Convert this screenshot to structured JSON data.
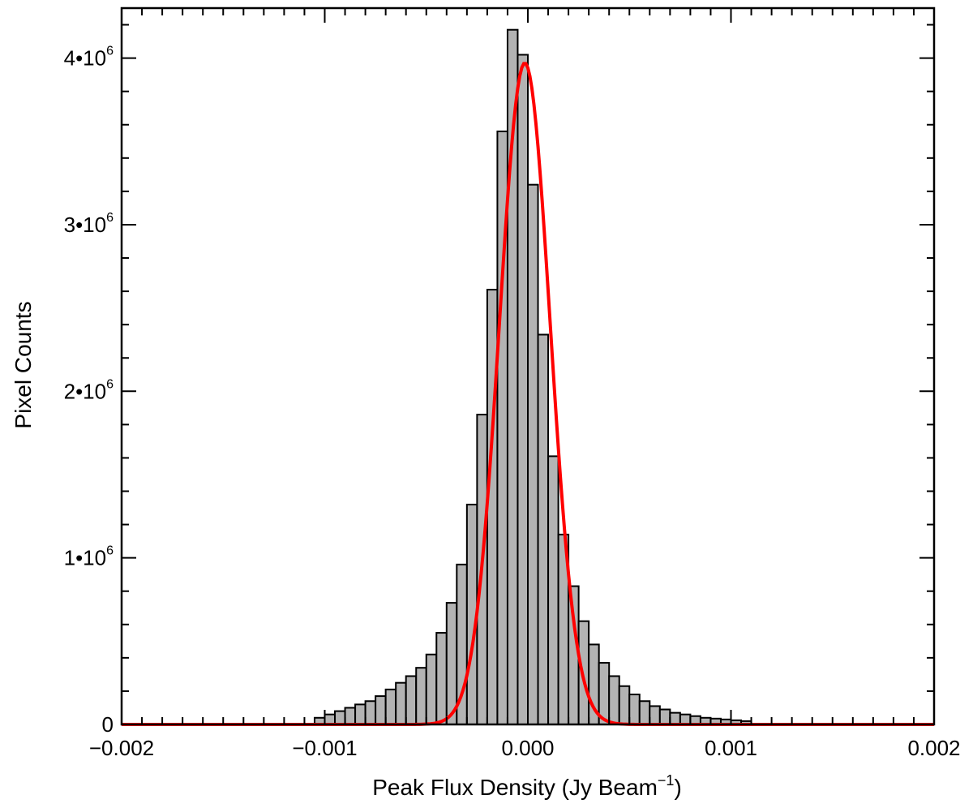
{
  "chart_data": {
    "type": "bar",
    "xlabel": "Peak Flux Density (Jy Beam",
    "xlabel_superscript": "−1",
    "xlabel_suffix": ")",
    "ylabel": "Pixel Counts",
    "xlim": [
      -0.002,
      0.002
    ],
    "ylim": [
      0,
      4300000
    ],
    "x_ticks": [
      -0.002,
      -0.001,
      0.0,
      0.001,
      0.002
    ],
    "x_tick_labels": [
      "−0.002",
      "−0.001",
      "0.000",
      "0.001",
      "0.002"
    ],
    "y_ticks": [
      0,
      1000000,
      2000000,
      3000000,
      4000000
    ],
    "y_tick_labels": [
      {
        "mantissa": "0",
        "exponent": ""
      },
      {
        "mantissa": "1•10",
        "exponent": "6"
      },
      {
        "mantissa": "2•10",
        "exponent": "6"
      },
      {
        "mantissa": "3•10",
        "exponent": "6"
      },
      {
        "mantissa": "4•10",
        "exponent": "6"
      }
    ],
    "grid": false,
    "bin_width": 5e-05,
    "bin_left_edges": [
      -0.00105,
      -0.001,
      -0.00095,
      -0.0009,
      -0.00085,
      -0.0008,
      -0.00075,
      -0.0007,
      -0.00065,
      -0.0006,
      -0.00055,
      -0.0005,
      -0.00045,
      -0.0004,
      -0.00035,
      -0.0003,
      -0.00025,
      -0.0002,
      -0.00015,
      -0.0001,
      -5e-05,
      0.0,
      5e-05,
      0.0001,
      0.00015,
      0.0002,
      0.00025,
      0.0003,
      0.00035,
      0.0004,
      0.00045,
      0.0005,
      0.00055,
      0.0006,
      0.00065,
      0.0007,
      0.00075,
      0.0008,
      0.00085,
      0.0009,
      0.00095,
      0.001,
      0.00105
    ],
    "histogram_counts": [
      40000,
      60000,
      80000,
      100000,
      120000,
      140000,
      170000,
      210000,
      250000,
      290000,
      340000,
      420000,
      550000,
      730000,
      960000,
      1320000,
      1860000,
      2610000,
      3560000,
      4170000,
      4020000,
      3240000,
      2340000,
      1610000,
      1140000,
      830000,
      620000,
      480000,
      370000,
      290000,
      230000,
      180000,
      140000,
      110000,
      90000,
      70000,
      60000,
      50000,
      40000,
      35000,
      30000,
      25000,
      20000
    ],
    "fit_curve": {
      "type": "gaussian",
      "amplitude": 3970000,
      "center": -1.5e-05,
      "sigma": 0.000125,
      "color": "#ff0000"
    },
    "bar_fill_color": "#b3b3b3",
    "bar_edge_color": "#000000"
  }
}
